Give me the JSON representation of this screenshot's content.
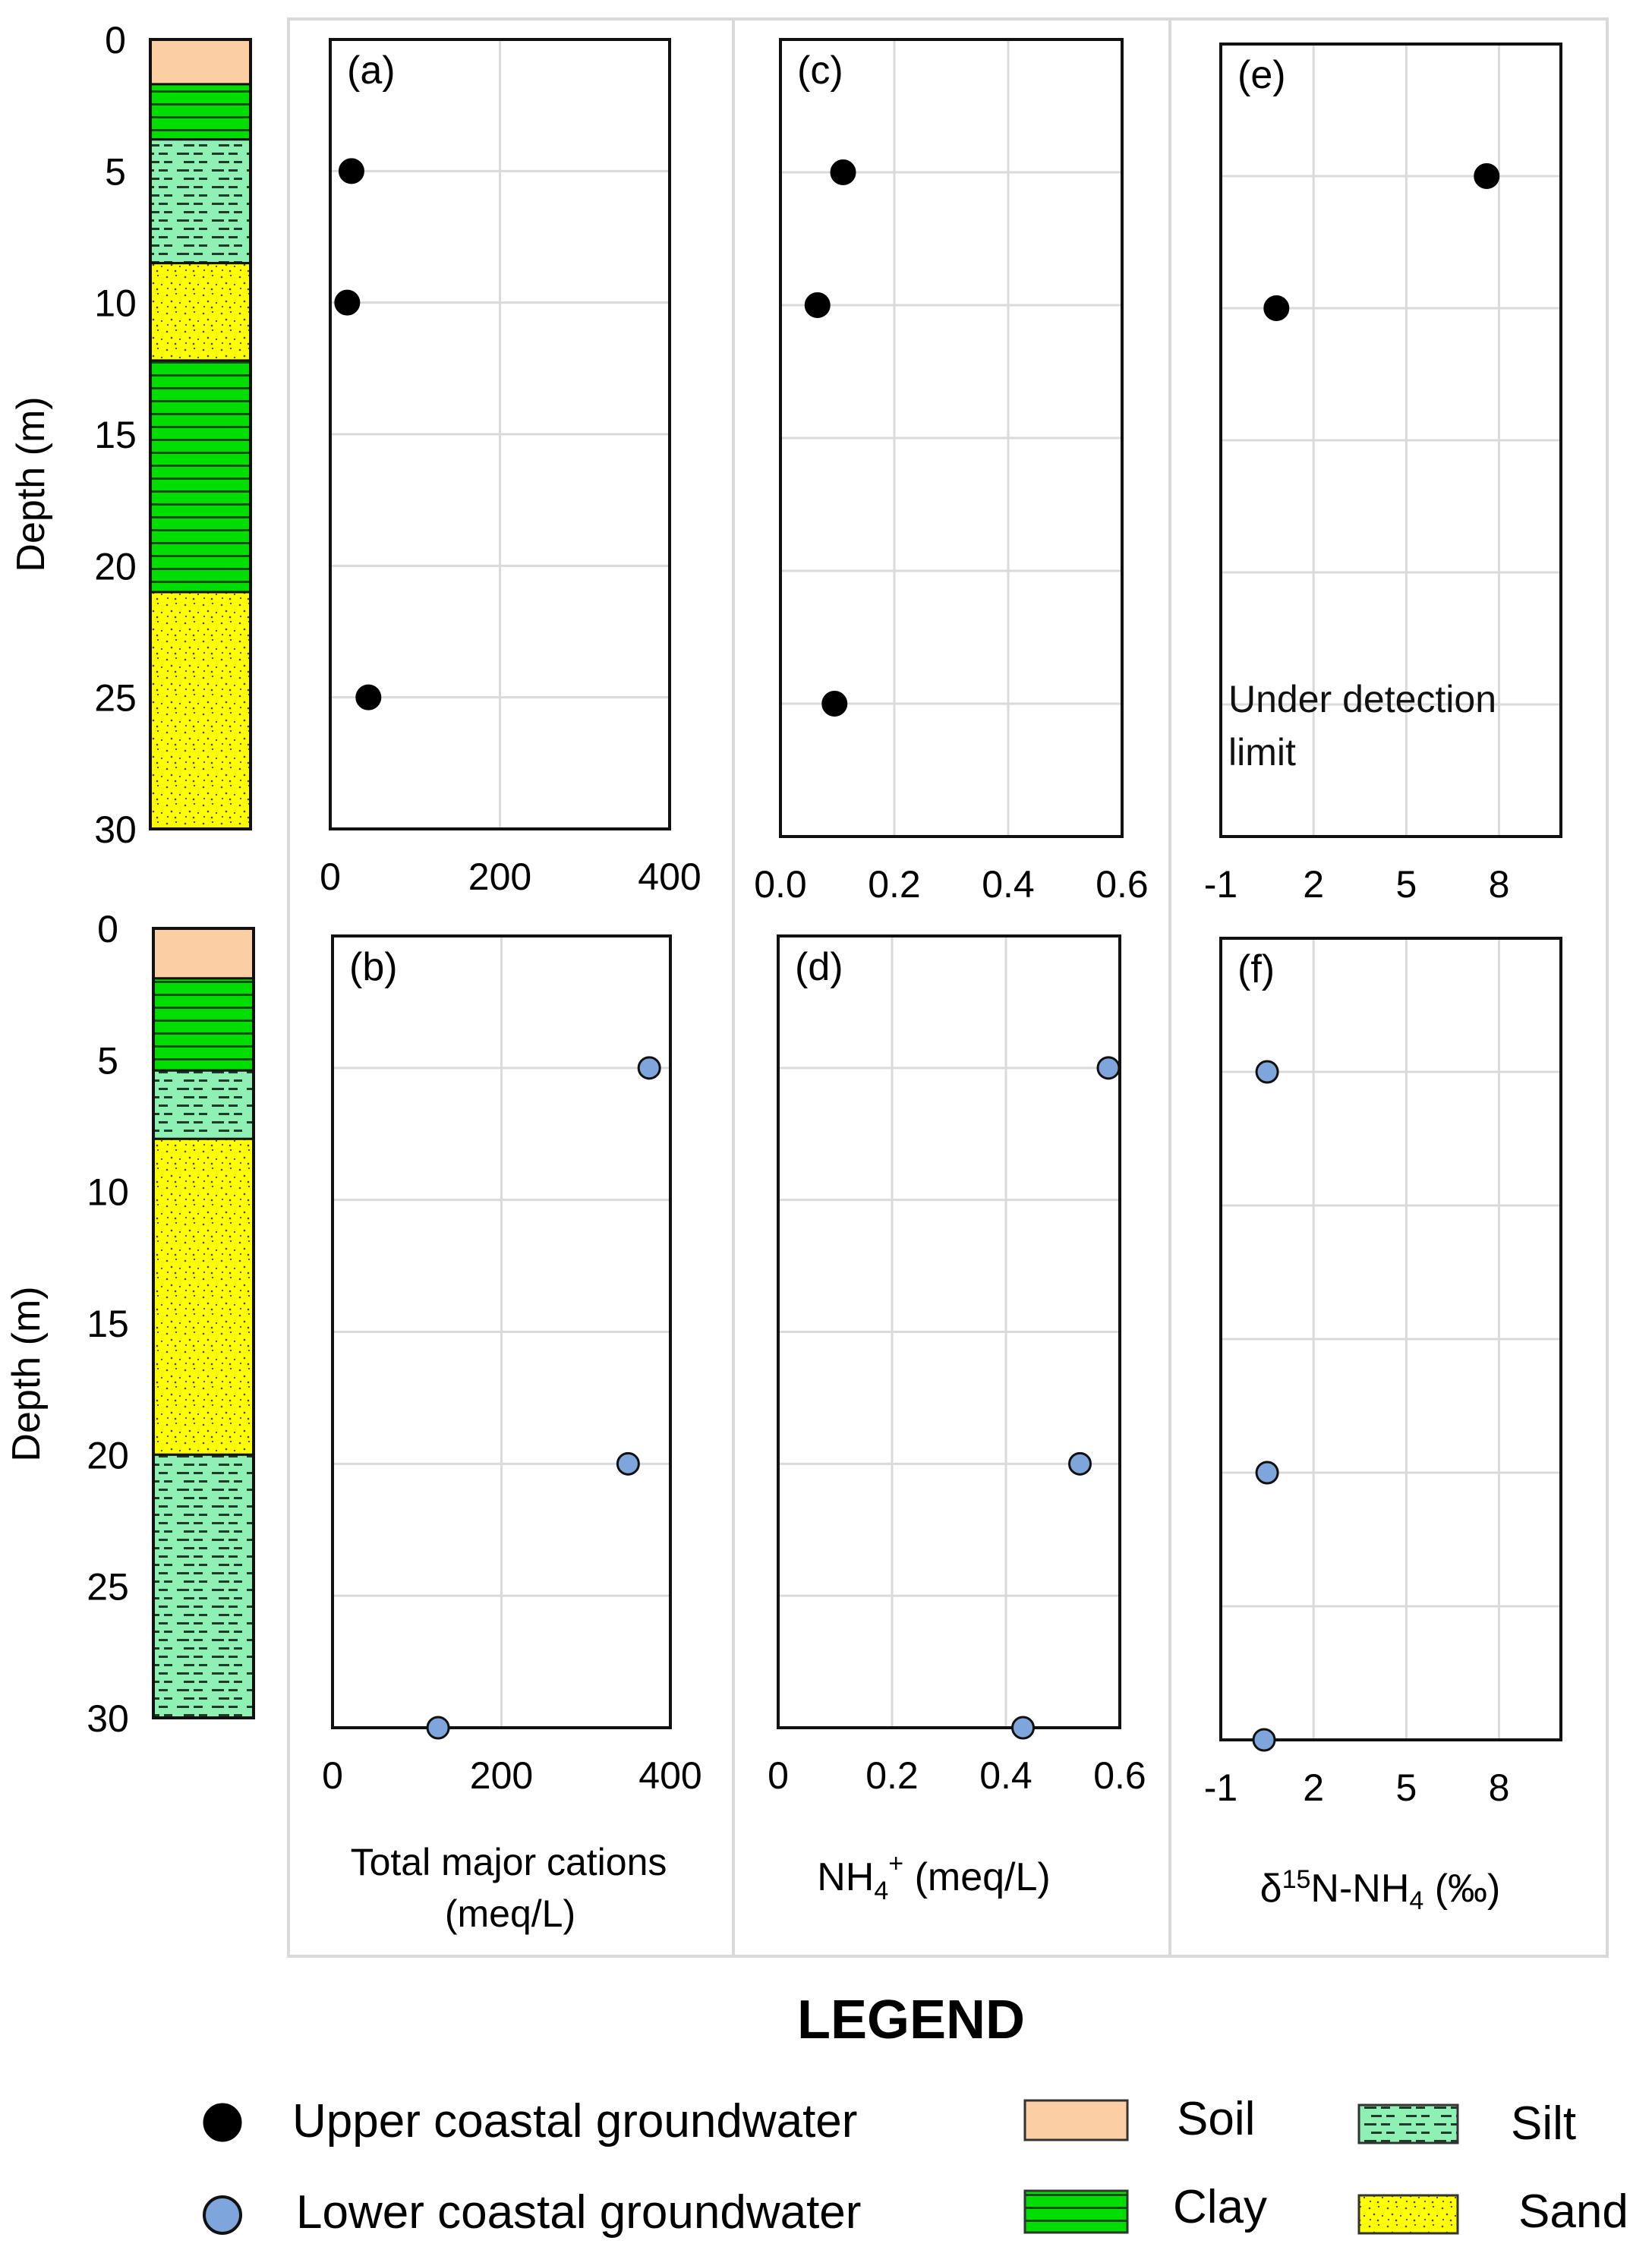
{
  "colors": {
    "soil": "#fbcfa3",
    "clay": "#00dd00",
    "silt": "#8ff0b3",
    "sand": "#ffff00",
    "upper_marker": "#000000",
    "lower_marker": "#7fa6dc",
    "grid": "#dadada",
    "separator": "#d9d9d9"
  },
  "axes": {
    "depth_label": "Depth (m)",
    "depth_ticks": [
      "0",
      "5",
      "10",
      "15",
      "20",
      "25",
      "30"
    ],
    "column_titles": {
      "cations": [
        "Total major cations",
        "(meq/L)"
      ],
      "nh4_base": "NH",
      "nh4_sub": "4",
      "nh4_sup": "+",
      "nh4_unit": " (meq/L)",
      "d15n_pre": "δ",
      "d15n_sup": "15",
      "d15n_mid": "N-NH",
      "d15n_sub": "4",
      "d15n_unit": " (‰)"
    }
  },
  "lithology": {
    "upper": [
      {
        "type": "soil",
        "from": 0,
        "to": 1.7
      },
      {
        "type": "clay",
        "from": 1.7,
        "to": 3.8
      },
      {
        "type": "silt",
        "from": 3.8,
        "to": 8.5
      },
      {
        "type": "sand",
        "from": 8.5,
        "to": 12.2
      },
      {
        "type": "clay",
        "from": 12.2,
        "to": 21.0
      },
      {
        "type": "sand",
        "from": 21.0,
        "to": 30.0
      }
    ],
    "lower": [
      {
        "type": "soil",
        "from": 0,
        "to": 1.9
      },
      {
        "type": "clay",
        "from": 1.9,
        "to": 5.4
      },
      {
        "type": "silt",
        "from": 5.4,
        "to": 8.0
      },
      {
        "type": "sand",
        "from": 8.0,
        "to": 20.0
      },
      {
        "type": "silt",
        "from": 20.0,
        "to": 30.0
      }
    ]
  },
  "chart_data": [
    {
      "type": "scatter",
      "id": "a",
      "label": "(a)",
      "series": "Upper coastal groundwater",
      "xlim": [
        0,
        400
      ],
      "xticks": [
        {
          "v": 0,
          "t": "0"
        },
        {
          "v": 200,
          "t": "200"
        },
        {
          "v": 400,
          "t": "400"
        }
      ],
      "ylim": [
        0,
        30
      ],
      "points": [
        {
          "x": 25,
          "y": 5
        },
        {
          "x": 20,
          "y": 10
        },
        {
          "x": 45,
          "y": 25
        }
      ]
    },
    {
      "type": "scatter",
      "id": "c",
      "label": "(c)",
      "series": "Upper coastal groundwater",
      "xlim": [
        0,
        0.6
      ],
      "xticks": [
        {
          "v": 0,
          "t": "0.0"
        },
        {
          "v": 0.2,
          "t": "0.2"
        },
        {
          "v": 0.4,
          "t": "0.4"
        },
        {
          "v": 0.6,
          "t": "0.6"
        }
      ],
      "ylim": [
        0,
        30
      ],
      "points": [
        {
          "x": 0.11,
          "y": 5
        },
        {
          "x": 0.065,
          "y": 10
        },
        {
          "x": 0.095,
          "y": 25
        }
      ]
    },
    {
      "type": "scatter",
      "id": "e",
      "label": "(e)",
      "series": "Upper coastal groundwater",
      "xlim": [
        -1,
        10
      ],
      "xticks": [
        {
          "v": -1,
          "t": "-1"
        },
        {
          "v": 2,
          "t": "2"
        },
        {
          "v": 5,
          "t": "5"
        },
        {
          "v": 8,
          "t": "8"
        }
      ],
      "ylim": [
        0,
        30
      ],
      "points": [
        {
          "x": 7.6,
          "y": 5
        },
        {
          "x": 0.8,
          "y": 10
        }
      ],
      "annotation": [
        "Under detection",
        "limit"
      ]
    },
    {
      "type": "scatter",
      "id": "b",
      "label": "(b)",
      "series": "Lower coastal groundwater",
      "xlim": [
        0,
        400
      ],
      "xticks": [
        {
          "v": 0,
          "t": "0"
        },
        {
          "v": 200,
          "t": "200"
        },
        {
          "v": 400,
          "t": "400"
        }
      ],
      "ylim": [
        0,
        30
      ],
      "points": [
        {
          "x": 375,
          "y": 5
        },
        {
          "x": 350,
          "y": 20
        },
        {
          "x": 125,
          "y": 30
        }
      ]
    },
    {
      "type": "scatter",
      "id": "d",
      "label": "(d)",
      "series": "Lower coastal groundwater",
      "xlim": [
        0,
        0.6
      ],
      "xticks": [
        {
          "v": 0,
          "t": "0"
        },
        {
          "v": 0.2,
          "t": "0.2"
        },
        {
          "v": 0.4,
          "t": "0.4"
        },
        {
          "v": 0.6,
          "t": "0.6"
        }
      ],
      "ylim": [
        0,
        30
      ],
      "points": [
        {
          "x": 0.58,
          "y": 5
        },
        {
          "x": 0.53,
          "y": 20
        },
        {
          "x": 0.43,
          "y": 30
        }
      ]
    },
    {
      "type": "scatter",
      "id": "f",
      "label": "(f)",
      "series": "Lower coastal groundwater",
      "xlim": [
        -1,
        10
      ],
      "xticks": [
        {
          "v": -1,
          "t": "-1"
        },
        {
          "v": 2,
          "t": "2"
        },
        {
          "v": 5,
          "t": "5"
        },
        {
          "v": 8,
          "t": "8"
        }
      ],
      "ylim": [
        0,
        30
      ],
      "points": [
        {
          "x": 0.5,
          "y": 5
        },
        {
          "x": 0.5,
          "y": 20
        },
        {
          "x": 0.4,
          "y": 30
        }
      ]
    }
  ],
  "legend": {
    "title": "LEGEND",
    "upper": "Upper coastal groundwater",
    "lower": "Lower coastal groundwater",
    "soil": "Soil",
    "clay": "Clay",
    "silt": "Silt",
    "sand": "Sand"
  }
}
